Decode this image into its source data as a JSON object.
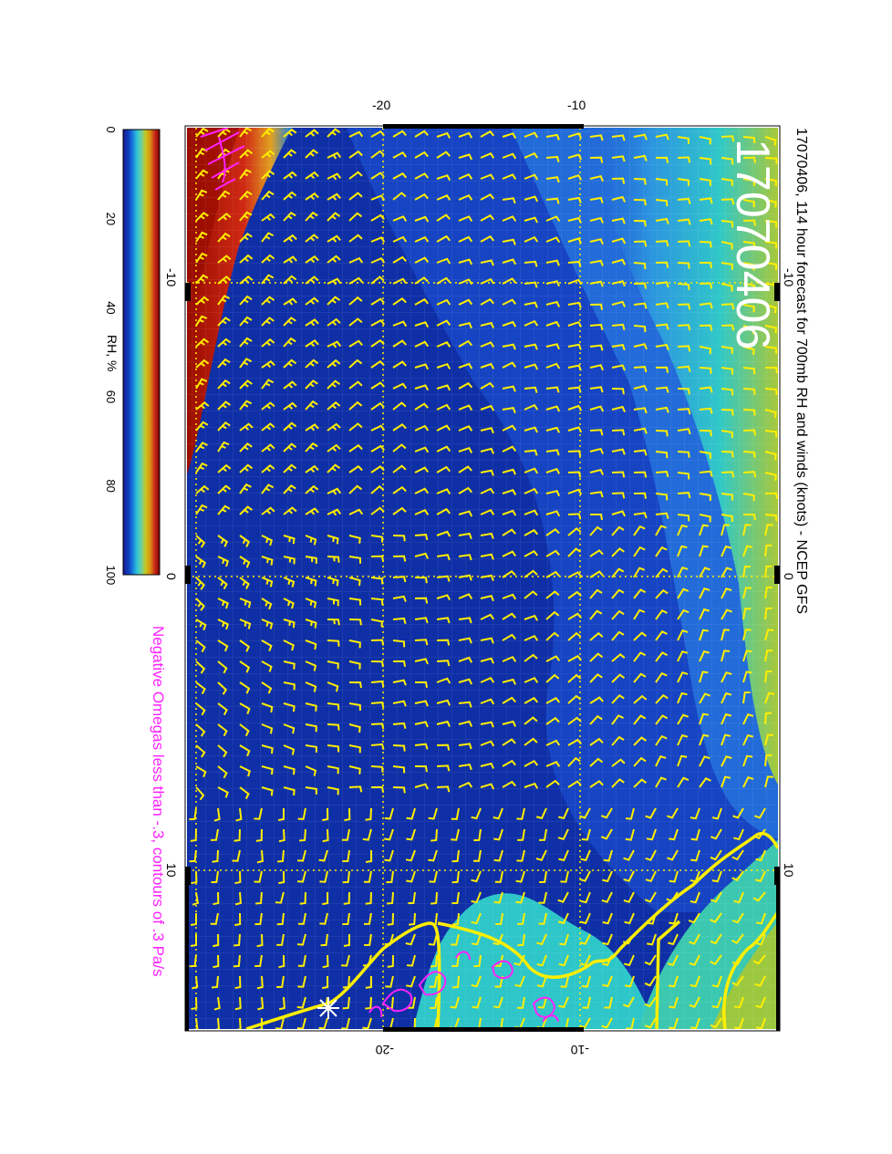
{
  "title": "17070406, 114 hour forecast for 700mb RH and winds (knots) - NCEP GFS",
  "stamp": "17070406",
  "footnote": "Negative Omegas less than -.3, contours of .3 Pa/s",
  "colorbar": {
    "label": "RH, %",
    "ticks": [
      "0",
      "20",
      "40",
      "60",
      "80",
      "100"
    ],
    "colors": [
      "#1a1a8c",
      "#0d3fbf",
      "#1a7ee0",
      "#2ec6d8",
      "#6fd0a0",
      "#c8c61a",
      "#d98a10",
      "#c8281a",
      "#7a0000"
    ]
  },
  "axes": {
    "lat_ticks_top": [
      "-20",
      "-10"
    ],
    "lat_ticks_bottom": [
      "-20",
      "-10"
    ],
    "lon_ticks_left": [
      "-10",
      "0",
      "10"
    ],
    "lon_ticks_right": [
      "-10",
      "0",
      "10"
    ]
  },
  "colors": {
    "wind": "#ffee00",
    "coast": "#ffee00",
    "omega": "#ff22ff",
    "grid": "#ffee00"
  }
}
